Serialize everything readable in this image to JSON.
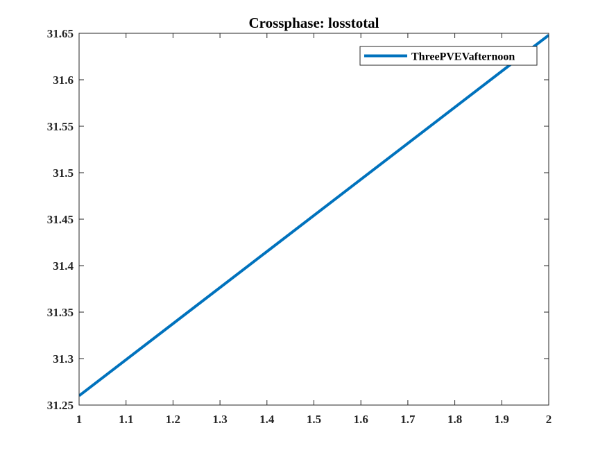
{
  "chart_data": {
    "type": "line",
    "title": "Crossphase: losstotal",
    "xlabel": "",
    "ylabel": "",
    "xlim": [
      1,
      2
    ],
    "ylim": [
      31.25,
      31.65
    ],
    "x_ticks": [
      1,
      1.1,
      1.2,
      1.3,
      1.4,
      1.5,
      1.6,
      1.7,
      1.8,
      1.9,
      2
    ],
    "x_tick_labels": [
      "1",
      "1.1",
      "1.2",
      "1.3",
      "1.4",
      "1.5",
      "1.6",
      "1.7",
      "1.8",
      "1.9",
      "2"
    ],
    "y_ticks": [
      31.25,
      31.3,
      31.35,
      31.4,
      31.45,
      31.5,
      31.55,
      31.6,
      31.65
    ],
    "y_tick_labels": [
      "31.25",
      "31.3",
      "31.35",
      "31.4",
      "31.45",
      "31.5",
      "31.55",
      "31.6",
      "31.65"
    ],
    "grid": false,
    "legend_position": "top-right",
    "series": [
      {
        "name": "ThreePVEVafternoon",
        "color": "#0072BD",
        "x": [
          1,
          2
        ],
        "y": [
          31.26,
          31.648
        ]
      }
    ]
  }
}
